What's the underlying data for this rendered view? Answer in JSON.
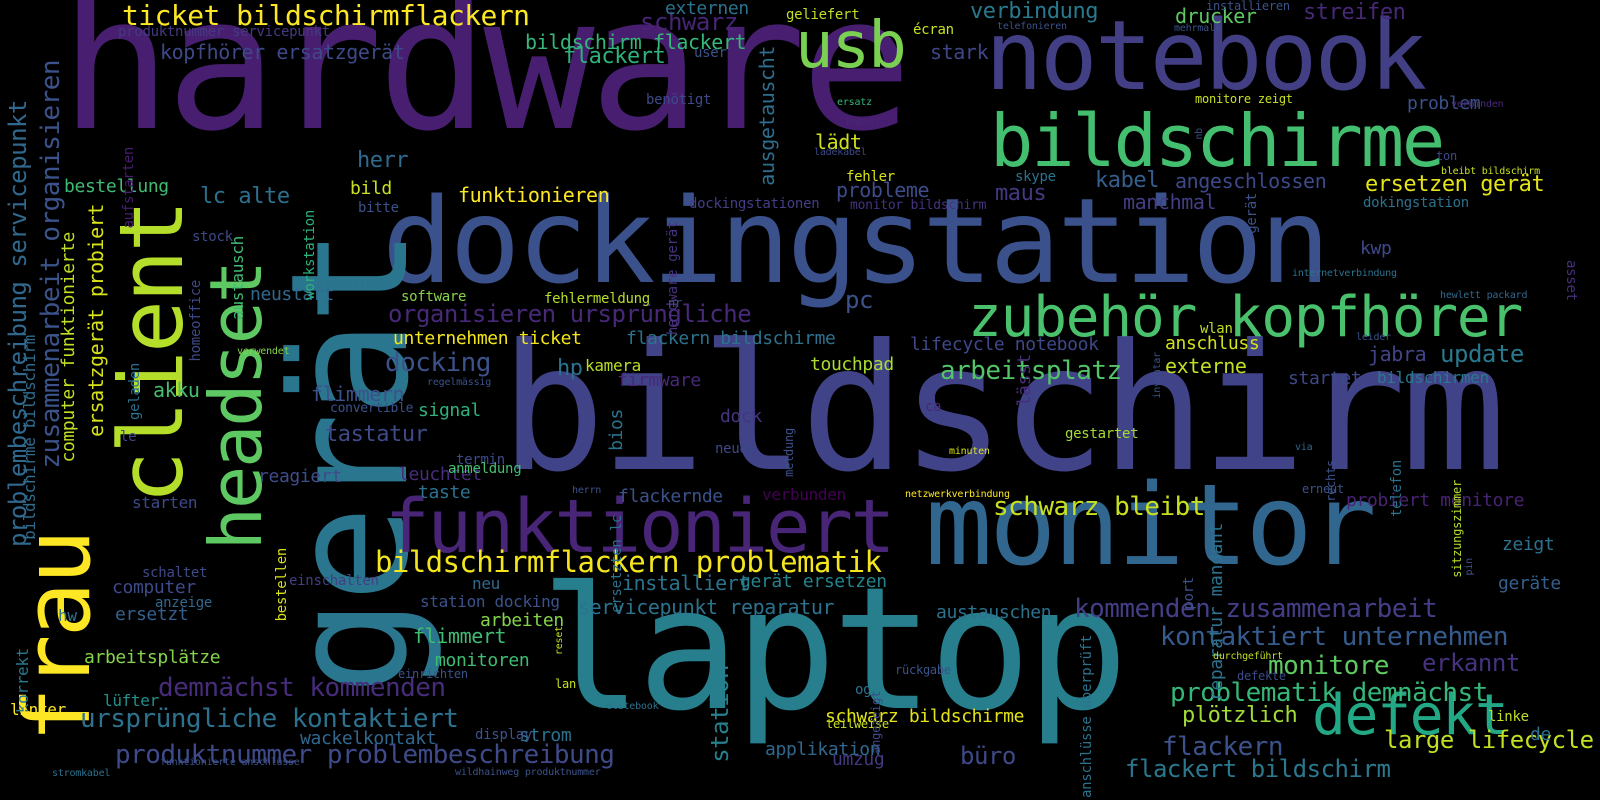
{
  "words": [
    {
      "text": "hardware",
      "color": "#481f70"
    },
    {
      "text": "bildschirm",
      "color": "#404387"
    },
    {
      "text": "dockingstation",
      "color": "#3b518b"
    },
    {
      "text": "laptop",
      "color": "#277f8e"
    },
    {
      "text": "notebook",
      "color": "#423f85"
    },
    {
      "text": "gerät",
      "color": "#2a768e"
    },
    {
      "text": "monitor",
      "color": "#31668e"
    },
    {
      "text": "bildschirme",
      "color": "#44bf70"
    },
    {
      "text": "client",
      "color": "#b5de2b"
    },
    {
      "text": "funktioniert",
      "color": "#482576"
    },
    {
      "text": "frau",
      "color": "#fde725"
    },
    {
      "text": "headset",
      "color": "#5ec962"
    },
    {
      "text": "zubehör kopfhörer",
      "color": "#4ac16d"
    },
    {
      "text": "usb",
      "color": "#7ad151"
    },
    {
      "text": "defekt",
      "color": "#22a884"
    },
    {
      "text": "bildschirmflackern problematik",
      "color": "#f4e61e"
    },
    {
      "text": "ticket bildschirmflackern",
      "color": "#fde725"
    },
    {
      "text": "zusammenarbeit organisieren",
      "color": "#3b528b"
    },
    {
      "text": "problembeschreibung servicepunkt",
      "color": "#31688e"
    },
    {
      "text": "schwarz bleibt",
      "color": "#c8e020"
    },
    {
      "text": "produktnummer problembeschreibung",
      "color": "#3e4a89"
    },
    {
      "text": "ursprüngliche kontaktiert",
      "color": "#2c728e"
    },
    {
      "text": "demnächst kommenden",
      "color": "#472c7a"
    },
    {
      "text": "kommenden zusammenarbeit",
      "color": "#433e85"
    },
    {
      "text": "kontaktiert unternehmen",
      "color": "#365c8d"
    },
    {
      "text": "problematik demnächst",
      "color": "#35b779"
    },
    {
      "text": "monitore",
      "color": "#5ec962"
    },
    {
      "text": "organisieren ursprüngliche",
      "color": "#482979"
    },
    {
      "text": "arbeitsplatz",
      "color": "#52c569"
    },
    {
      "text": "flackern",
      "color": "#3b528b"
    },
    {
      "text": "flackert bildschirm",
      "color": "#2a788e"
    },
    {
      "text": "large lifecycle",
      "color": "#c2df23"
    },
    {
      "text": "büro",
      "color": "#3e4989"
    },
    {
      "text": "erkannt",
      "color": "#46327e"
    },
    {
      "text": "plötzlich",
      "color": "#a2da37"
    },
    {
      "text": "station",
      "color": "#277f8e"
    },
    {
      "text": "ersatzgerät probiert",
      "color": "#d8e219"
    },
    {
      "text": "computer funktionierte",
      "color": "#c0df25"
    },
    {
      "text": "bildschirme bildschirm",
      "color": "#2f6c8e"
    },
    {
      "text": "kopfhörer ersatzgerät",
      "color": "#3e4989"
    },
    {
      "text": "flackert",
      "color": "#2db27d"
    },
    {
      "text": "bildschirm flackert",
      "color": "#35b779"
    },
    {
      "text": "verbindung",
      "color": "#2a788e"
    },
    {
      "text": "drucker",
      "color": "#5ec962"
    },
    {
      "text": "streifen",
      "color": "#482878"
    },
    {
      "text": "schwarz",
      "color": "#482475"
    },
    {
      "text": "externen",
      "color": "#2c728e"
    },
    {
      "text": "ausgetauscht",
      "color": "#2e6e8e"
    },
    {
      "text": "stark",
      "color": "#3f4788"
    },
    {
      "text": "herr",
      "color": "#306a8e"
    },
    {
      "text": "lc alte",
      "color": "#2d708e"
    },
    {
      "text": "bestellung",
      "color": "#3fbc73"
    },
    {
      "text": "bild",
      "color": "#c8e020"
    },
    {
      "text": "funktionieren",
      "color": "#fde725"
    },
    {
      "text": "probleme",
      "color": "#3e4c8a"
    },
    {
      "text": "maus",
      "color": "#453882"
    },
    {
      "text": "kabel",
      "color": "#355f8d"
    },
    {
      "text": "angeschlossen",
      "color": "#3e4989"
    },
    {
      "text": "manchmal",
      "color": "#433e85"
    },
    {
      "text": "ersetzen gerät",
      "color": "#e5e419"
    },
    {
      "text": "lädt",
      "color": "#d0e11c"
    },
    {
      "text": "problem",
      "color": "#3b518b"
    },
    {
      "text": "austausch",
      "color": "#3fbc73"
    },
    {
      "text": "neustart",
      "color": "#31688e"
    },
    {
      "text": "pc",
      "color": "#3b528b"
    },
    {
      "text": "unternehmen ticket",
      "color": "#f1e51d"
    },
    {
      "text": "flackern bildschirme",
      "color": "#2c728e"
    },
    {
      "text": "lifecycle notebook",
      "color": "#3f4889"
    },
    {
      "text": "anschluss",
      "color": "#d2e21b"
    },
    {
      "text": "update",
      "color": "#2a788e"
    },
    {
      "text": "jabra",
      "color": "#414487"
    },
    {
      "text": "kwp",
      "color": "#3e4989"
    },
    {
      "text": "docking",
      "color": "#3b528b"
    },
    {
      "text": "hp",
      "color": "#2c728e"
    },
    {
      "text": "kamera",
      "color": "#b8de29"
    },
    {
      "text": "touchpad",
      "color": "#aadc32"
    },
    {
      "text": "externe",
      "color": "#c2df23"
    },
    {
      "text": "startet",
      "color": "#3e4989"
    },
    {
      "text": "bildschirmen",
      "color": "#2a788e"
    },
    {
      "text": "akku",
      "color": "#44bf70"
    },
    {
      "text": "flimmern",
      "color": "#3b518b"
    },
    {
      "text": "tastatur",
      "color": "#3e4a89"
    },
    {
      "text": "signal",
      "color": "#2db27d"
    },
    {
      "text": "firmware",
      "color": "#482979"
    },
    {
      "text": "dock",
      "color": "#453581"
    },
    {
      "text": "lässt",
      "color": "#472d7b"
    },
    {
      "text": "reagiert",
      "color": "#3e4c8a"
    },
    {
      "text": "leuchtet",
      "color": "#472d7b"
    },
    {
      "text": "taste",
      "color": "#2c728e"
    },
    {
      "text": "flackernde",
      "color": "#3b528b"
    },
    {
      "text": "verbunden",
      "color": "#440154"
    },
    {
      "text": "probiert monitore",
      "color": "#482374"
    },
    {
      "text": "zeigt",
      "color": "#2c728e"
    },
    {
      "text": "geräte",
      "color": "#355f8d"
    },
    {
      "text": "installiert",
      "color": "#2c728e"
    },
    {
      "text": "gerät ersetzen",
      "color": "#25848e"
    },
    {
      "text": "servicepunkt reparatur",
      "color": "#2c728e"
    },
    {
      "text": "arbeiten",
      "color": "#84d44b"
    },
    {
      "text": "flimmert",
      "color": "#3fbc73"
    },
    {
      "text": "monitoren",
      "color": "#3fbc73"
    },
    {
      "text": "austauschen",
      "color": "#2c728e"
    },
    {
      "text": "computer",
      "color": "#3e4a89"
    },
    {
      "text": "ersetzt",
      "color": "#355f8d"
    },
    {
      "text": "arbeitsplätze",
      "color": "#84d44b"
    },
    {
      "text": "wackelkontakt",
      "color": "#31688e"
    },
    {
      "text": "strom",
      "color": "#2c728e"
    },
    {
      "text": "schwarz bildschirme",
      "color": "#e2e418"
    },
    {
      "text": "applikation",
      "color": "#31688e"
    },
    {
      "text": "umzug",
      "color": "#453882"
    },
    {
      "text": "reparatur mandant",
      "color": "#2c728e"
    },
    {
      "text": "bios",
      "color": "#2c728e"
    },
    {
      "text": "neu",
      "color": "#31688e"
    },
    {
      "text": "hw",
      "color": "#2c728e"
    },
    {
      "text": "korrekt",
      "color": "#2a788e"
    },
    {
      "text": "lüfter",
      "color": "#21918c"
    },
    {
      "text": "linker",
      "color": "#fde725"
    },
    {
      "text": "display",
      "color": "#3b528b"
    },
    {
      "text": "écran",
      "color": "#c8e020"
    },
    {
      "text": "geliefert",
      "color": "#c0df25"
    },
    {
      "text": "user",
      "color": "#3b528b"
    },
    {
      "text": "benötigt",
      "color": "#3e4989"
    },
    {
      "text": "ersatz",
      "color": "#35b779"
    },
    {
      "text": "kaputt",
      "color": "#482677"
    },
    {
      "text": "ladekabel",
      "color": "#3e4989"
    },
    {
      "text": "fehler",
      "color": "#d8e219"
    },
    {
      "text": "skype",
      "color": "#2c728e"
    },
    {
      "text": "dockingstationen",
      "color": "#433e85"
    },
    {
      "text": "monitor bildschirm",
      "color": "#463480"
    },
    {
      "text": "workstation",
      "color": "#2db27d"
    },
    {
      "text": "bitte",
      "color": "#3b528b"
    },
    {
      "text": "aufstarten",
      "color": "#481d6f"
    },
    {
      "text": "produktnummer servicepunkt",
      "color": "#453882"
    },
    {
      "text": "installieren",
      "color": "#3b528b"
    },
    {
      "text": "mehrmals",
      "color": "#3b528b"
    },
    {
      "text": "telefonieren",
      "color": "#3b528b"
    },
    {
      "text": "monitore zeigt",
      "color": "#c8e020"
    },
    {
      "text": "nb",
      "color": "#3b528b"
    },
    {
      "text": "verbinden",
      "color": "#482878"
    },
    {
      "text": "ton",
      "color": "#3e4989"
    },
    {
      "text": "bleibt bildschirm",
      "color": "#c8e020"
    },
    {
      "text": "dokingstation",
      "color": "#2c728e"
    },
    {
      "text": "hewlett packard",
      "color": "#31688e"
    },
    {
      "text": "asset",
      "color": "#46307e"
    },
    {
      "text": "internetverbindung",
      "color": "#2c728e"
    },
    {
      "text": "wlan",
      "color": "#c0df25"
    },
    {
      "text": "inventar",
      "color": "#3b528b"
    },
    {
      "text": "leider",
      "color": "#3b528b"
    },
    {
      "text": "ca",
      "color": "#482979"
    },
    {
      "text": "gestartet",
      "color": "#a5db36"
    },
    {
      "text": "via",
      "color": "#31688e"
    },
    {
      "text": "rechts",
      "color": "#3b528b"
    },
    {
      "text": "telefon",
      "color": "#2c728e"
    },
    {
      "text": "sitzungszimmer",
      "color": "#b5de2b"
    },
    {
      "text": "minuten",
      "color": "#d8e219"
    },
    {
      "text": "meldung",
      "color": "#3b528b"
    },
    {
      "text": "ersetzten lc",
      "color": "#2c728e"
    },
    {
      "text": "neuer",
      "color": "#3e4989"
    },
    {
      "text": "termin",
      "color": "#3e4989"
    },
    {
      "text": "netzwerkverbindung",
      "color": "#fde725"
    },
    {
      "text": "erneut",
      "color": "#3b528b"
    },
    {
      "text": "pin",
      "color": "#3b528b"
    },
    {
      "text": "herrn",
      "color": "#3b528b"
    },
    {
      "text": "port",
      "color": "#3b528b"
    },
    {
      "text": "hardware gerät",
      "color": "#46327e"
    },
    {
      "text": "nr",
      "color": "#3b528b"
    },
    {
      "text": "fehlermeldung",
      "color": "#b5de2b"
    },
    {
      "text": "software",
      "color": "#84d44b"
    },
    {
      "text": "homeoffice",
      "color": "#3e4989"
    },
    {
      "text": "stock",
      "color": "#3e4989"
    },
    {
      "text": "eingesteckt",
      "color": "#2c728e"
    },
    {
      "text": "geladen",
      "color": "#2c728e"
    },
    {
      "text": "verwendet",
      "color": "#84d44b"
    },
    {
      "text": "regelmässig",
      "color": "#3b528b"
    },
    {
      "text": "convertible",
      "color": "#3b528b"
    },
    {
      "text": "le",
      "color": "#3e4989"
    },
    {
      "text": "anmeldung",
      "color": "#44bf70"
    },
    {
      "text": "starten",
      "color": "#3e4989"
    },
    {
      "text": "bestellen",
      "color": "#d8e219"
    },
    {
      "text": "schaltet",
      "color": "#3e4989"
    },
    {
      "text": "anzeige",
      "color": "#31688e"
    },
    {
      "text": "einschalten",
      "color": "#433e85"
    },
    {
      "text": "station docking",
      "color": "#3b528b"
    },
    {
      "text": "reset",
      "color": "#c8e020"
    },
    {
      "text": "einrichten",
      "color": "#3b528b"
    },
    {
      "text": "lan",
      "color": "#c8e020"
    },
    {
      "text": "elitebook",
      "color": "#2c728e"
    },
    {
      "text": "stromkabel",
      "color": "#2c728e"
    },
    {
      "text": "funktionierte anschlüsse",
      "color": "#3b528b"
    },
    {
      "text": "wildhainweg produktnummer",
      "color": "#3b528b"
    },
    {
      "text": "teilweise",
      "color": "#c8e020"
    },
    {
      "text": "og",
      "color": "#2c728e"
    },
    {
      "text": "angezeigt",
      "color": "#3e4989"
    },
    {
      "text": "anschlüsse überprüft",
      "color": "#2c728e"
    },
    {
      "text": "rückgabe",
      "color": "#3b528b"
    },
    {
      "text": "durchgeführt",
      "color": "#c0df25"
    },
    {
      "text": "defekte",
      "color": "#3e4989"
    },
    {
      "text": "linke",
      "color": "#c0df25"
    },
    {
      "text": "de",
      "color": "#2c728e"
    },
    {
      "text": "gerät",
      "color": "#3b528b"
    }
  ]
}
